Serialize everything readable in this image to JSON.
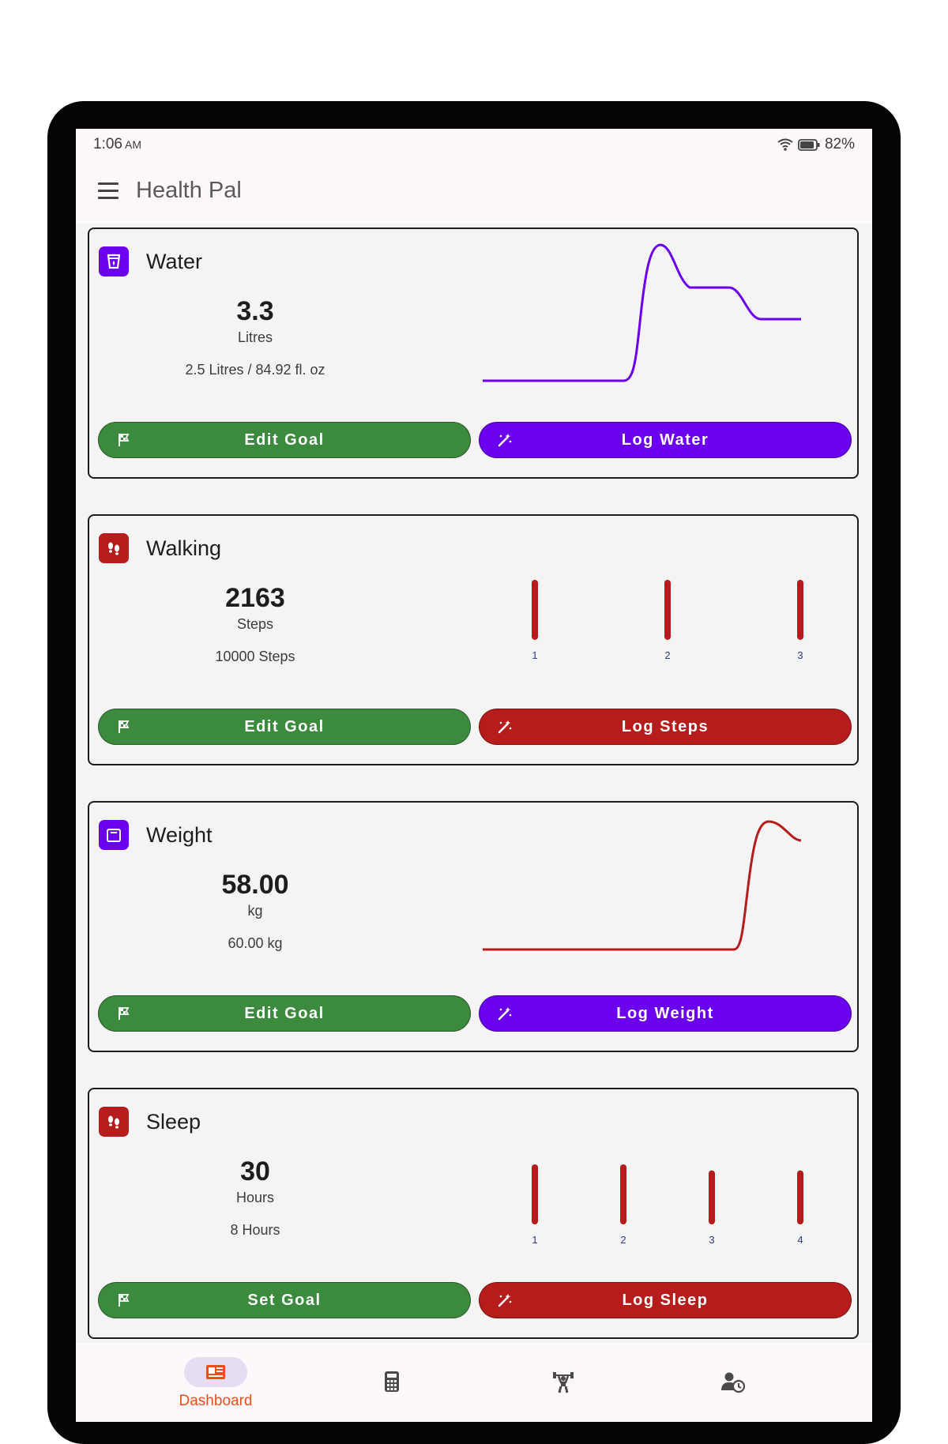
{
  "status_bar": {
    "time": "1:06",
    "ampm": "AM",
    "battery": "82%"
  },
  "app_bar": {
    "title": "Health Pal",
    "menu_icon": "hamburger-menu-icon"
  },
  "cards": [
    {
      "name": "Water",
      "value": "3.3",
      "unit": "Litres",
      "goal": "2.5  Litres / 84.92  fl. oz",
      "icon": "water-glass-icon",
      "accent": "#6a00ee",
      "goal_button": "Edit Goal",
      "log_button": "Log Water",
      "chart": {
        "type": "line",
        "color": "#6a00ee"
      }
    },
    {
      "name": "Walking",
      "value": "2163",
      "unit": "Steps",
      "goal": "10000 Steps",
      "icon": "footsteps-icon",
      "accent": "#b71c1c",
      "goal_button": "Edit Goal",
      "log_button": "Log Steps",
      "chart": {
        "type": "bar",
        "color": "#b71c1c",
        "categories": [
          "1",
          "2",
          "3"
        ],
        "values": [
          1,
          1,
          1
        ]
      }
    },
    {
      "name": "Weight",
      "value": "58.00",
      "unit": "kg",
      "goal": "60.00 kg",
      "icon": "weight-scale-icon",
      "accent": "#6a00ee",
      "goal_button": "Edit Goal",
      "log_button": "Log Weight",
      "chart": {
        "type": "line",
        "color": "#b71c1c"
      }
    },
    {
      "name": "Sleep",
      "value": "30",
      "unit": "Hours",
      "goal": "8 Hours",
      "icon": "footsteps-icon",
      "accent": "#b71c1c",
      "goal_button": "Set Goal",
      "log_button": "Log Sleep",
      "chart": {
        "type": "bar",
        "color": "#b71c1c",
        "categories": [
          "1",
          "2",
          "3",
          "4"
        ],
        "values": [
          1,
          1,
          0.9,
          0.9
        ]
      }
    }
  ],
  "bottom_nav": {
    "items": [
      {
        "label": "Dashboard",
        "icon": "dashboard-icon",
        "active": true
      },
      {
        "label": "",
        "icon": "calculator-icon",
        "active": false
      },
      {
        "label": "",
        "icon": "weightlifting-icon",
        "active": false
      },
      {
        "label": "",
        "icon": "user-history-icon",
        "active": false
      }
    ]
  },
  "colors": {
    "goal_button": "#3b8a3e",
    "purple": "#6a00ee",
    "red": "#b71c1c",
    "nav_active": "#e8501b"
  }
}
